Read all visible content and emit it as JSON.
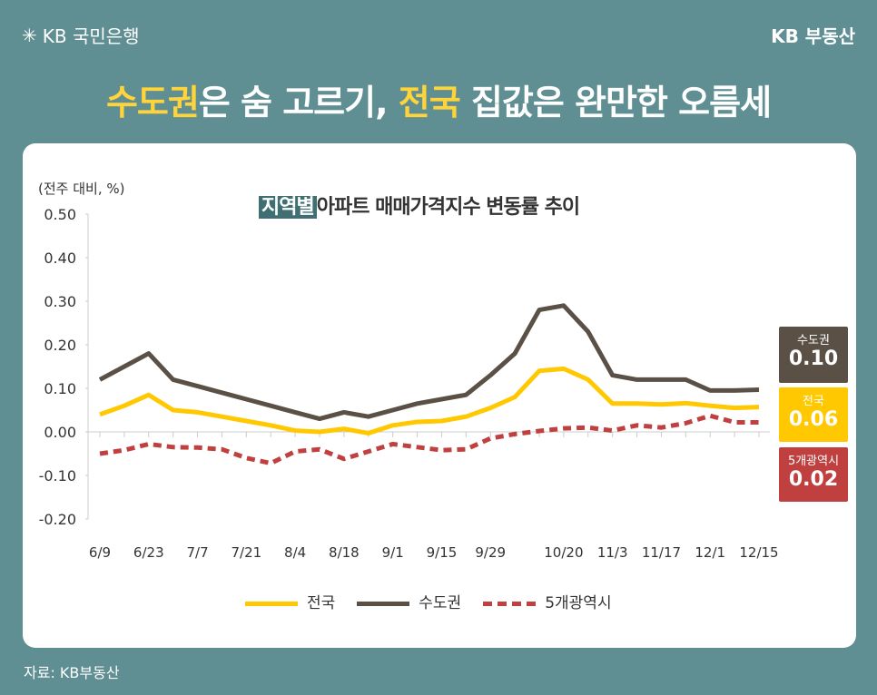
{
  "header": {
    "logo_text": "KB 국민은행",
    "brand": "KB 부동산",
    "headline_parts": [
      "수도권",
      "은 숨 고르기, ",
      "전국",
      " 집값은 완만한 오름세"
    ]
  },
  "source": "자료: KB부동산",
  "colors": {
    "background": "#5f8e93",
    "national": "#ffc800",
    "capital": "#5a5046",
    "metro5": "#c0403f",
    "title_box": "#3f6e73"
  },
  "chart_data": {
    "type": "line",
    "title_box": "지역별",
    "title_rest": "아파트 매매가격지수 변동률 추이",
    "ylabel": "(전주 대비, %)",
    "ylim": [
      -0.2,
      0.5
    ],
    "yticks": [
      "0.50",
      "0.40",
      "0.30",
      "0.20",
      "0.10",
      "0.00",
      "-0.10",
      "-0.20"
    ],
    "x": [
      "6/9",
      "6/16",
      "6/23",
      "6/30",
      "7/7",
      "7/14",
      "7/21",
      "7/28",
      "8/4",
      "8/11",
      "8/18",
      "8/25",
      "9/1",
      "9/8",
      "9/15",
      "9/22",
      "9/29",
      "10/6",
      "10/13",
      "10/20",
      "10/27",
      "11/3",
      "11/10",
      "11/17",
      "11/24",
      "12/1",
      "12/8",
      "12/15"
    ],
    "xtick_labels": [
      "6/9",
      "6/23",
      "7/7",
      "7/21",
      "8/4",
      "8/18",
      "9/1",
      "9/15",
      "9/29",
      "10/20",
      "11/3",
      "11/17",
      "12/1",
      "12/15"
    ],
    "series": [
      {
        "name": "전국",
        "style": "solid",
        "values": [
          0.04,
          0.06,
          0.085,
          0.05,
          0.045,
          0.035,
          0.025,
          0.015,
          0.003,
          0.0,
          0.007,
          -0.003,
          0.015,
          0.023,
          0.025,
          0.035,
          0.055,
          0.08,
          0.14,
          0.145,
          0.12,
          0.065,
          0.065,
          0.063,
          0.066,
          0.06,
          0.055,
          0.057
        ],
        "last_label": "0.06"
      },
      {
        "name": "수도권",
        "style": "solid",
        "values": [
          0.12,
          0.15,
          0.18,
          0.12,
          0.105,
          0.09,
          0.075,
          0.06,
          0.045,
          0.03,
          0.045,
          0.035,
          0.05,
          0.065,
          0.075,
          0.085,
          0.13,
          0.18,
          0.28,
          0.29,
          0.23,
          0.13,
          0.12,
          0.12,
          0.12,
          0.095,
          0.095,
          0.097
        ],
        "last_label": "0.10"
      },
      {
        "name": "5개광역시",
        "style": "dashed",
        "values": [
          -0.05,
          -0.042,
          -0.028,
          -0.035,
          -0.036,
          -0.04,
          -0.06,
          -0.072,
          -0.045,
          -0.04,
          -0.062,
          -0.045,
          -0.028,
          -0.035,
          -0.042,
          -0.04,
          -0.015,
          -0.005,
          0.002,
          0.008,
          0.01,
          0.003,
          0.015,
          0.01,
          0.02,
          0.037,
          0.022,
          0.022
        ],
        "last_label": "0.02"
      }
    ],
    "grid": false,
    "legend": "bottom"
  }
}
